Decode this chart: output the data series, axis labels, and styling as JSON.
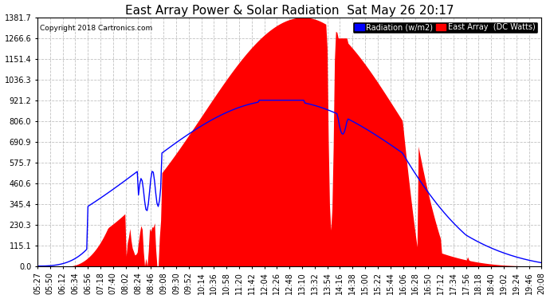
{
  "title": "East Array Power & Solar Radiation  Sat May 26 20:17",
  "copyright": "Copyright 2018 Cartronics.com",
  "legend_labels": [
    "Radiation (w/m2)",
    "East Array  (DC Watts)"
  ],
  "legend_colors": [
    "blue",
    "red"
  ],
  "y_ticks": [
    0.0,
    115.1,
    230.3,
    345.4,
    460.6,
    575.7,
    690.9,
    806.0,
    921.2,
    1036.3,
    1151.4,
    1266.6,
    1381.7
  ],
  "y_max": 1381.7,
  "y_min": 0.0,
  "background_color": "#ffffff",
  "plot_bg_color": "#ffffff",
  "grid_color": "#bbbbbb",
  "fill_color": "red",
  "line_color": "blue",
  "title_fontsize": 11,
  "tick_fontsize": 7,
  "time_labels": [
    "05:27",
    "05:50",
    "06:12",
    "06:34",
    "06:56",
    "07:18",
    "07:40",
    "08:02",
    "08:24",
    "08:46",
    "09:08",
    "09:30",
    "09:52",
    "10:14",
    "10:36",
    "10:58",
    "11:20",
    "11:42",
    "12:04",
    "12:26",
    "12:48",
    "13:10",
    "13:32",
    "13:54",
    "14:16",
    "14:38",
    "15:00",
    "15:22",
    "15:44",
    "16:06",
    "16:28",
    "16:50",
    "17:12",
    "17:34",
    "17:56",
    "18:18",
    "18:40",
    "19:02",
    "19:24",
    "19:46",
    "20:08"
  ],
  "n_points": 410
}
